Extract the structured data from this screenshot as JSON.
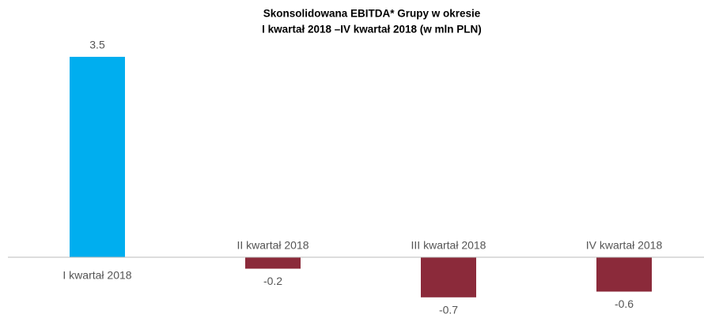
{
  "chart_data": {
    "type": "bar",
    "title": [
      "Skonsolidowana EBITDA* Grupy w okresie",
      "I kwartał 2018 –IV kwartał 2018 (w mln PLN)"
    ],
    "categories": [
      "I kwartał 2018",
      "II kwartał 2018",
      "III kwartał 2018",
      "IV kwartał 2018"
    ],
    "values": [
      3.5,
      -0.2,
      -0.7,
      -0.6
    ],
    "colors": [
      "#00aeef",
      "#8b2a3a",
      "#8b2a3a",
      "#8b2a3a"
    ]
  }
}
